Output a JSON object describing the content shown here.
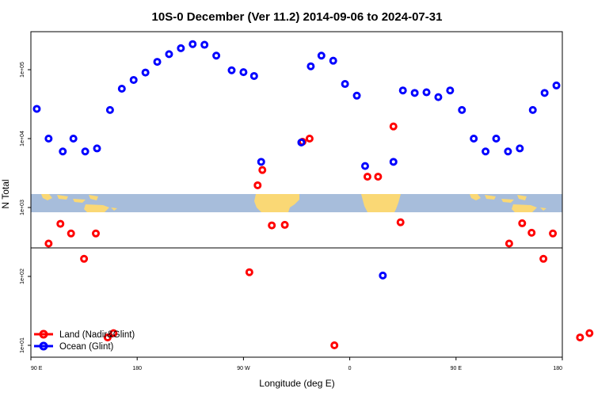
{
  "chart_data": {
    "type": "scatter",
    "title": "10S-0 December (Ver 11.2)   2014-09-06 to 2024-07-31",
    "xlabel": "Longitude (deg E)",
    "ylabel": "N Total",
    "y_scale": "log",
    "grid": false,
    "legend_position": "bottom-left",
    "x_ticks": [
      {
        "value": 90,
        "label": "90 E"
      },
      {
        "value": 180,
        "label": "180"
      },
      {
        "value": 270,
        "label": "90 W"
      },
      {
        "value": 360,
        "label": "0"
      },
      {
        "value": 450,
        "label": "90 E"
      },
      {
        "value": 540,
        "label": "180"
      }
    ],
    "y_ticks": [
      {
        "value": 10,
        "label": "1e+01"
      },
      {
        "value": 100,
        "label": "1e+02"
      },
      {
        "value": 1000,
        "label": "1e+03"
      },
      {
        "value": 10000,
        "label": "1e+04"
      },
      {
        "value": 100000,
        "label": "1e+05"
      }
    ],
    "xlim": [
      90,
      540
    ],
    "ylim": [
      8,
      400000
    ],
    "map_strip": {
      "lat_range": "10S-0",
      "ocean_color": "#a7bddb",
      "land_color": "#fad875",
      "shown_on_axis": "1e+03"
    },
    "series": [
      {
        "name": "Land (Nadir&Glint)",
        "color": "#ff0000",
        "points": [
          [
            105,
            300
          ],
          [
            115,
            580
          ],
          [
            124,
            420
          ],
          [
            135,
            180
          ],
          [
            145,
            420
          ],
          [
            155,
            13
          ],
          [
            160,
            15
          ],
          [
            275,
            115
          ],
          [
            282,
            2100
          ],
          [
            286,
            3500
          ],
          [
            294,
            550
          ],
          [
            305,
            560
          ],
          [
            320,
            9000
          ],
          [
            326,
            10000
          ],
          [
            347,
            10
          ],
          [
            375,
            2800
          ],
          [
            384,
            2800
          ],
          [
            397,
            15000
          ],
          [
            403,
            610
          ],
          [
            495,
            300
          ],
          [
            506,
            590
          ],
          [
            514,
            430
          ],
          [
            524,
            180
          ],
          [
            532,
            420
          ],
          [
            555,
            13
          ],
          [
            563,
            15
          ]
        ]
      },
      {
        "name": "Ocean (Glint)",
        "color": "#0000ff",
        "points": [
          [
            95,
            27000
          ],
          [
            105,
            10000
          ],
          [
            117,
            6500
          ],
          [
            126,
            10000
          ],
          [
            136,
            6500
          ],
          [
            146,
            7200
          ],
          [
            157,
            26000
          ],
          [
            167,
            53000
          ],
          [
            177,
            71000
          ],
          [
            187,
            91000
          ],
          [
            197,
            130000
          ],
          [
            207,
            168000
          ],
          [
            217,
            205000
          ],
          [
            227,
            235000
          ],
          [
            237,
            230000
          ],
          [
            247,
            160000
          ],
          [
            260,
            98000
          ],
          [
            270,
            92000
          ],
          [
            279,
            81000
          ],
          [
            285,
            4600
          ],
          [
            319,
            8800
          ],
          [
            327,
            112000
          ],
          [
            336,
            160000
          ],
          [
            346,
            135000
          ],
          [
            356,
            62000
          ],
          [
            366,
            42000
          ],
          [
            373,
            4000
          ],
          [
            388,
            103
          ],
          [
            397,
            4600
          ],
          [
            405,
            50000
          ],
          [
            415,
            46000
          ],
          [
            425,
            47000
          ],
          [
            435,
            40000
          ],
          [
            445,
            50000
          ],
          [
            455,
            26000
          ],
          [
            465,
            10000
          ],
          [
            475,
            6500
          ],
          [
            484,
            10000
          ],
          [
            494,
            6500
          ],
          [
            504,
            7200
          ],
          [
            515,
            26000
          ],
          [
            525,
            46000
          ],
          [
            535,
            59000
          ]
        ]
      }
    ]
  }
}
